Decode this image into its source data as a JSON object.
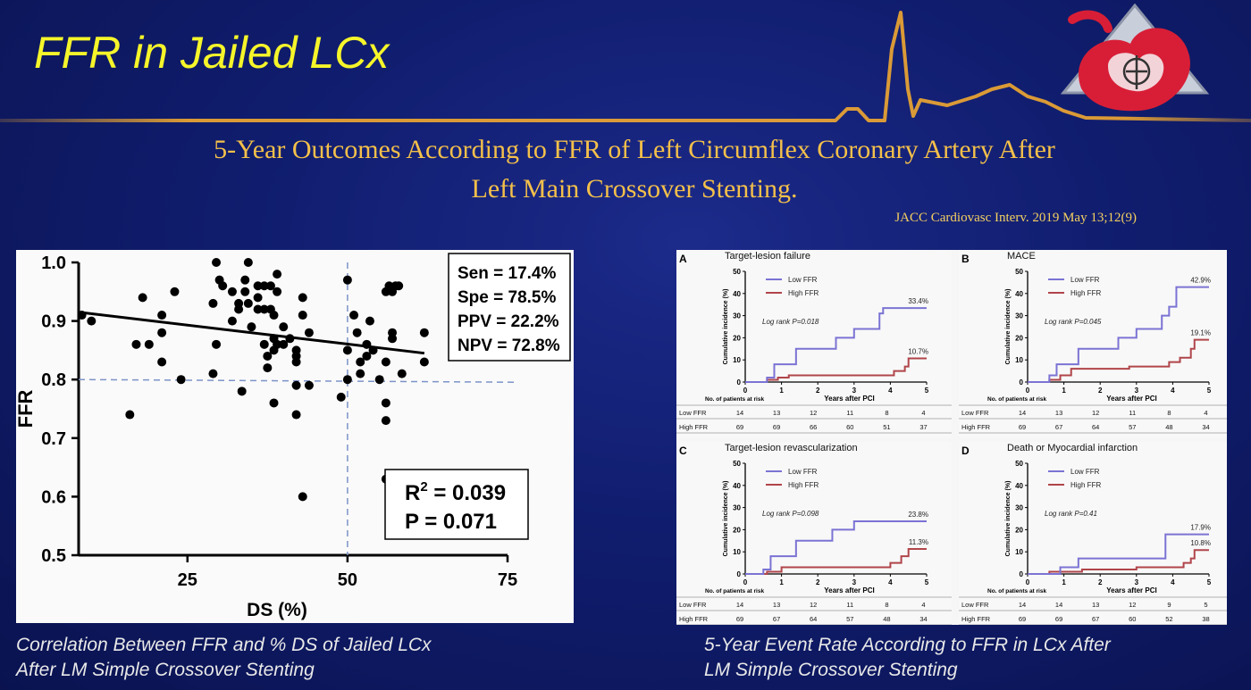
{
  "slide": {
    "title": "FFR in Jailed LCx",
    "headline_line1": "5-Year Outcomes According to FFR of Left Circumflex Coronary Artery After",
    "headline_line2": "Left Main Crossover Stenting.",
    "citation": "JACC Cardiovasc Interv. 2019 May 13;12(9)",
    "caption_left_line1": "Correlation Between FFR and % DS of Jailed LCx",
    "caption_left_line2": "After LM Simple Crossover Stenting",
    "caption_right_line1": "5-Year Event Rate According to FFR in LCx After",
    "caption_right_line2": "LM Simple Crossover Stenting",
    "colors": {
      "title": "#f5f52a",
      "headline": "#f4c04a",
      "background": "#101d6e",
      "ecg_line": "#f0a830",
      "logo": "#d81e36"
    }
  },
  "chart_data": [
    {
      "type": "scatter",
      "xlabel": "DS (%)",
      "ylabel": "FFR",
      "xlim": [
        8,
        75
      ],
      "ylim": [
        0.5,
        1.0
      ],
      "xticks": [
        "25",
        "50",
        "75"
      ],
      "yticks": [
        "0.5",
        "0.6",
        "0.7",
        "0.8",
        "0.9",
        "1.0"
      ],
      "stats": [
        "Sen = 17.4%",
        "Spe = 78.5%",
        "PPV = 22.2%",
        "NPV = 72.8%"
      ],
      "r2_label": "R",
      "r2_value": "= 0.039",
      "p_label": "P = 0.071",
      "cutoffs": {
        "x": 50,
        "y": 0.8
      },
      "regression": {
        "x": [
          8,
          62
        ],
        "y": [
          0.915,
          0.845
        ]
      },
      "points": [
        [
          8.5,
          0.91
        ],
        [
          10,
          0.9
        ],
        [
          16,
          0.74
        ],
        [
          17,
          0.86
        ],
        [
          18,
          0.94
        ],
        [
          19,
          0.86
        ],
        [
          21,
          0.91
        ],
        [
          21,
          0.88
        ],
        [
          21,
          0.83
        ],
        [
          23,
          0.95
        ],
        [
          24,
          0.8
        ],
        [
          29,
          0.93
        ],
        [
          29.5,
          1.0
        ],
        [
          29.5,
          0.86
        ],
        [
          29,
          0.81
        ],
        [
          30,
          0.97
        ],
        [
          30.5,
          0.96
        ],
        [
          32,
          0.95
        ],
        [
          32,
          0.9
        ],
        [
          33,
          0.93
        ],
        [
          33,
          0.92
        ],
        [
          33.5,
          0.78
        ],
        [
          34,
          0.95
        ],
        [
          34.5,
          1.0
        ],
        [
          34,
          0.97
        ],
        [
          34.5,
          0.93
        ],
        [
          35,
          0.89
        ],
        [
          36,
          0.96
        ],
        [
          36,
          0.94
        ],
        [
          36,
          0.92
        ],
        [
          37,
          0.96
        ],
        [
          37,
          0.92
        ],
        [
          37,
          0.86
        ],
        [
          37.5,
          0.84
        ],
        [
          37.5,
          0.82
        ],
        [
          38,
          0.96
        ],
        [
          38,
          0.92
        ],
        [
          38.5,
          0.91
        ],
        [
          38.5,
          0.87
        ],
        [
          38.5,
          0.85
        ],
        [
          38.5,
          0.76
        ],
        [
          39,
          0.98
        ],
        [
          39,
          0.95
        ],
        [
          39,
          0.86
        ],
        [
          40,
          0.89
        ],
        [
          40,
          0.86
        ],
        [
          41,
          0.87
        ],
        [
          42,
          0.85
        ],
        [
          42,
          0.84
        ],
        [
          42,
          0.83
        ],
        [
          42,
          0.79
        ],
        [
          42,
          0.74
        ],
        [
          43,
          0.94
        ],
        [
          43,
          0.91
        ],
        [
          43,
          0.6
        ],
        [
          44,
          0.88
        ],
        [
          44,
          0.79
        ],
        [
          49,
          0.77
        ],
        [
          50,
          0.97
        ],
        [
          50,
          0.85
        ],
        [
          50,
          0.8
        ],
        [
          51,
          0.91
        ],
        [
          51.5,
          0.88
        ],
        [
          52,
          0.83
        ],
        [
          52,
          0.81
        ],
        [
          53,
          0.86
        ],
        [
          53,
          0.84
        ],
        [
          53.5,
          0.9
        ],
        [
          54,
          0.85
        ],
        [
          55,
          0.8
        ],
        [
          56,
          0.95
        ],
        [
          56,
          0.83
        ],
        [
          56,
          0.76
        ],
        [
          56,
          0.73
        ],
        [
          56,
          0.63
        ],
        [
          56.5,
          0.96
        ],
        [
          57,
          0.95
        ],
        [
          57,
          0.88
        ],
        [
          57,
          0.87
        ],
        [
          57.5,
          0.96
        ],
        [
          58,
          0.96
        ],
        [
          58.5,
          0.81
        ],
        [
          62,
          0.88
        ],
        [
          62,
          0.83
        ]
      ]
    },
    {
      "type": "line",
      "panels": [
        {
          "letter": "A",
          "title": "Target-lesion failure",
          "logrank": "Log rank P=0.018",
          "low_end": "33.4%",
          "high_end": "10.7%",
          "low_ffr": {
            "x": [
              0,
              0.3,
              0.6,
              0.8,
              1.4,
              1.9,
              2.5,
              3.0,
              3.2,
              3.7,
              3.8,
              4.1,
              5.0
            ],
            "y": [
              0,
              0,
              2,
              8,
              15,
              15,
              20,
              24,
              24,
              31,
              33.4,
              33.4,
              33.4
            ]
          },
          "high_ffr": {
            "x": [
              0,
              0.3,
              0.6,
              0.9,
              1.2,
              3.0,
              3.4,
              3.9,
              4.1,
              4.3,
              4.4,
              4.5,
              5.0
            ],
            "y": [
              0,
              0,
              1,
              2,
              3,
              3,
              3,
              3,
              5,
              5,
              7,
              10.7,
              10.7
            ]
          },
          "risk_low": [
            "14",
            "13",
            "12",
            "11",
            "8",
            "4"
          ],
          "risk_high": [
            "69",
            "69",
            "66",
            "60",
            "51",
            "37"
          ]
        },
        {
          "letter": "B",
          "title": "MACE",
          "logrank": "Log rank P=0.045",
          "low_end": "42.9%",
          "high_end": "19.1%",
          "low_ffr": {
            "x": [
              0,
              0.3,
              0.6,
              0.8,
              1.4,
              1.9,
              2.5,
              3.0,
              3.2,
              3.7,
              3.9,
              4.1,
              5.0
            ],
            "y": [
              0,
              0,
              3,
              8,
              15,
              15,
              20,
              24,
              24,
              30,
              34,
              42.9,
              42.9
            ]
          },
          "high_ffr": {
            "x": [
              0,
              0.3,
              0.6,
              0.9,
              1.2,
              2.0,
              2.8,
              3.5,
              3.9,
              4.2,
              4.5,
              4.6,
              5.0
            ],
            "y": [
              0,
              0,
              1,
              3,
              6,
              6,
              7,
              7,
              9,
              11,
              15,
              19.1,
              19.1
            ]
          },
          "risk_low": [
            "14",
            "13",
            "12",
            "11",
            "8",
            "4"
          ],
          "risk_high": [
            "69",
            "67",
            "64",
            "57",
            "48",
            "34"
          ]
        },
        {
          "letter": "C",
          "title": "Target-lesion revascularization",
          "logrank": "Log rank P=0.098",
          "low_end": "23.8%",
          "high_end": "11.3%",
          "low_ffr": {
            "x": [
              0,
              0.3,
              0.5,
              0.7,
              1.4,
              1.9,
              2.4,
              3.0,
              3.5,
              4.0,
              5.0
            ],
            "y": [
              0,
              0,
              2,
              8,
              15,
              15,
              20,
              23.8,
              23.8,
              23.8,
              23.8
            ]
          },
          "high_ffr": {
            "x": [
              0,
              0.3,
              0.6,
              0.9,
              1.0,
              2.5,
              3.6,
              4.0,
              4.3,
              4.5,
              5.0
            ],
            "y": [
              0,
              0,
              1,
              1,
              3,
              3,
              3,
              5,
              8,
              11.3,
              11.3
            ]
          },
          "risk_low": [
            "14",
            "13",
            "12",
            "11",
            "8",
            "4"
          ],
          "risk_high": [
            "69",
            "67",
            "64",
            "57",
            "48",
            "34"
          ]
        },
        {
          "letter": "D",
          "title": "Death or Myocardial infarction",
          "logrank": "Log rank P=0.41",
          "low_end": "17.9%",
          "high_end": "10.8%",
          "low_ffr": {
            "x": [
              0,
              0.6,
              0.9,
              1.4,
              2.0,
              2.9,
              3.6,
              3.8,
              4.0,
              5.0
            ],
            "y": [
              0,
              0,
              3,
              7,
              7,
              7,
              7,
              17.9,
              17.9,
              17.9
            ]
          },
          "high_ffr": {
            "x": [
              0,
              0.3,
              0.6,
              1.5,
              2.8,
              3.0,
              3.9,
              4.3,
              4.5,
              4.6,
              5.0
            ],
            "y": [
              0,
              0,
              1,
              2,
              2,
              3,
              3,
              5,
              7,
              10.8,
              10.8
            ]
          },
          "risk_low": [
            "14",
            "14",
            "13",
            "12",
            "9",
            "5"
          ],
          "risk_high": [
            "69",
            "69",
            "67",
            "60",
            "52",
            "38"
          ]
        }
      ],
      "ylabel": "Cumulative incidence (%)",
      "xlabel": "Years after PCI",
      "yticks": [
        "0",
        "10",
        "20",
        "30",
        "40",
        "50"
      ],
      "xticks": [
        "0",
        "1",
        "2",
        "3",
        "4",
        "5"
      ],
      "legend": [
        "Low FFR",
        "High FFR"
      ],
      "risk_header": "No. of patients at risk",
      "row_labels": [
        "Low FFR",
        "High FFR"
      ],
      "colors": {
        "low": "#7b73d4",
        "high": "#b0454a"
      }
    }
  ]
}
